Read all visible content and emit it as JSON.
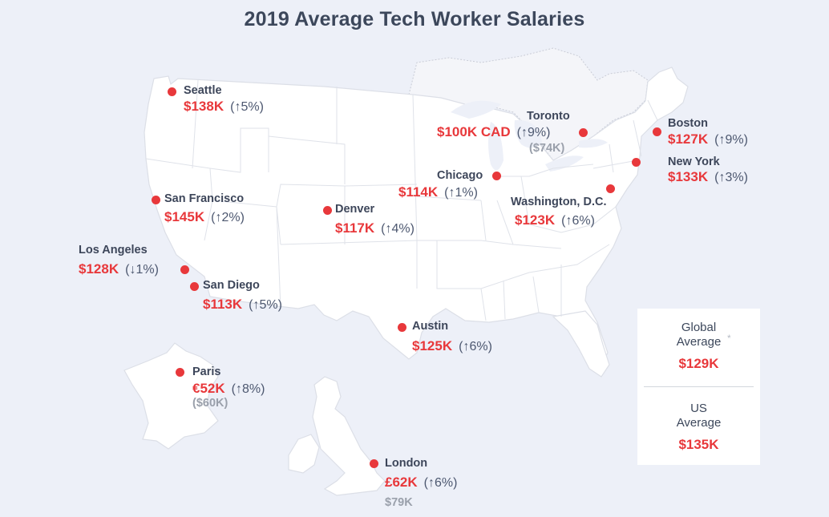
{
  "title": "2019 Average Tech Worker Salaries",
  "colors": {
    "accent": "#e8383b",
    "text": "#3c475b",
    "background": "#edf0f8",
    "land": "#ffffff",
    "border": "#dcdfe7"
  },
  "cities": {
    "seattle": {
      "name": "Seattle",
      "salary": "$138K",
      "change": "(↑5%)",
      "converted": ""
    },
    "san_francisco": {
      "name": "San Francisco",
      "salary": "$145K",
      "change": "(↑2%)",
      "converted": ""
    },
    "los_angeles": {
      "name": "Los Angeles",
      "salary": "$128K",
      "change": "(↓1%)",
      "converted": ""
    },
    "san_diego": {
      "name": "San Diego",
      "salary": "$113K",
      "change": "(↑5%)",
      "converted": ""
    },
    "denver": {
      "name": "Denver",
      "salary": "$117K",
      "change": "(↑4%)",
      "converted": ""
    },
    "austin": {
      "name": "Austin",
      "salary": "$125K",
      "change": "(↑6%)",
      "converted": ""
    },
    "chicago": {
      "name": "Chicago",
      "salary": "$114K",
      "change": "(↑1%)",
      "converted": ""
    },
    "toronto": {
      "name": "Toronto",
      "salary": "$100K CAD",
      "change": "(↑9%)",
      "converted": "($74K)"
    },
    "washington_dc": {
      "name": "Washington, D.C.",
      "salary": "$123K",
      "change": "(↑6%)",
      "converted": ""
    },
    "new_york": {
      "name": "New York",
      "salary": "$133K",
      "change": "(↑3%)",
      "converted": ""
    },
    "boston": {
      "name": "Boston",
      "salary": "$127K",
      "change": "(↑9%)",
      "converted": ""
    },
    "paris": {
      "name": "Paris",
      "salary": "€52K",
      "change": "(↑8%)",
      "converted": "($60K)"
    },
    "london": {
      "name": "London",
      "salary": "£62K",
      "change": "(↑6%)",
      "converted": "$79K"
    }
  },
  "averages": {
    "global": {
      "label_line1": "Global",
      "label_line2": "Average",
      "asterisk": "*",
      "value": "$129K"
    },
    "us": {
      "label_line1": "US",
      "label_line2": "Average",
      "value": "$135K"
    }
  }
}
